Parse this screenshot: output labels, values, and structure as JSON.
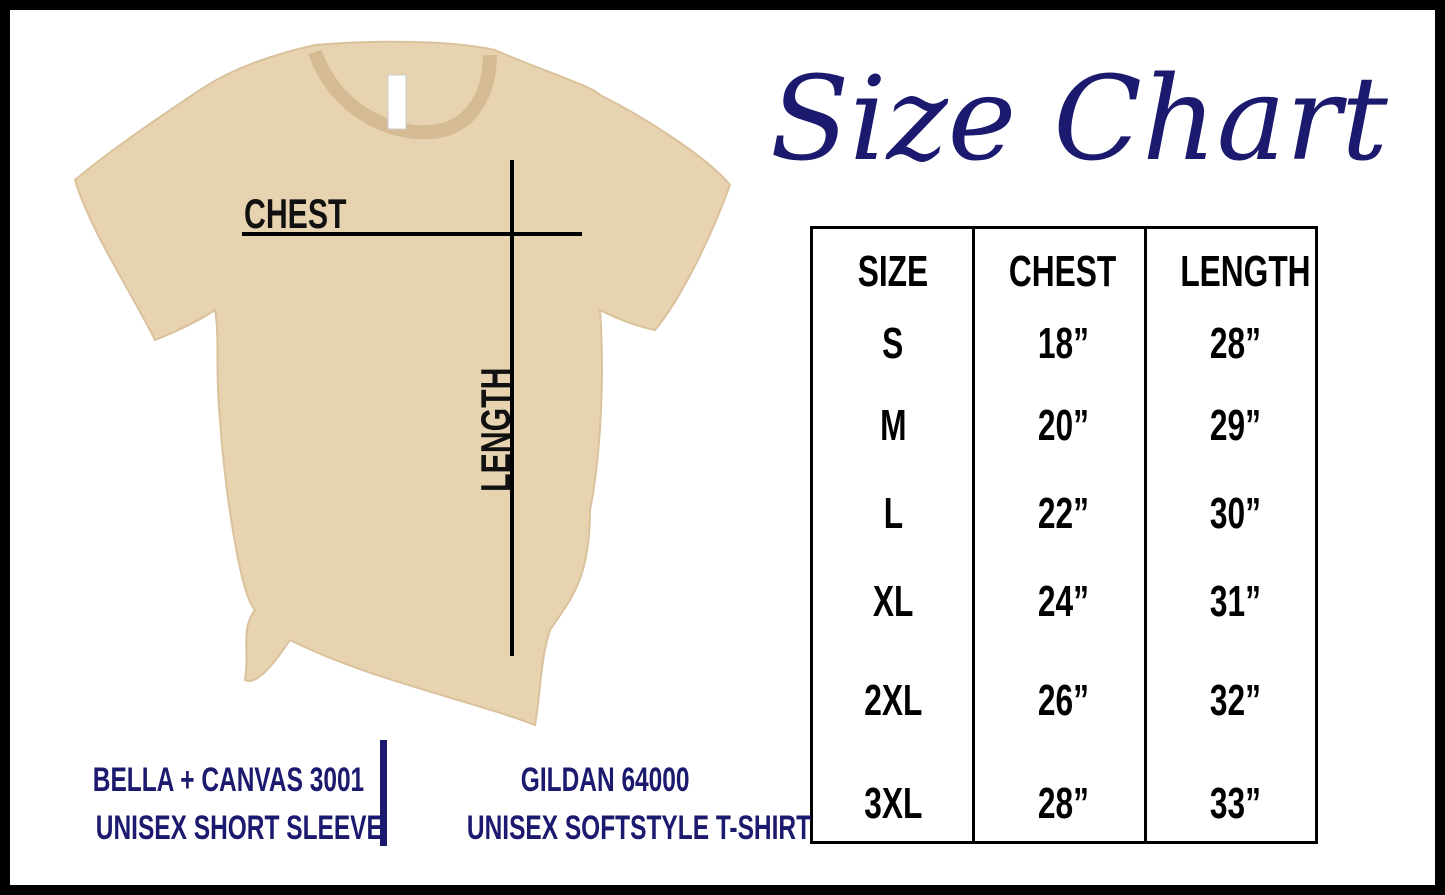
{
  "title": "Size Chart",
  "colors": {
    "accent": "#1c1a6e",
    "shirt": "#e8d3b0",
    "border": "#000000"
  },
  "shirt_labels": {
    "chest": "CHEST",
    "length": "LENGTH"
  },
  "table": {
    "headers": [
      "SIZE",
      "CHEST",
      "LENGTH"
    ],
    "rows": [
      [
        "S",
        "18”",
        "28”"
      ],
      [
        "M",
        "20”",
        "29”"
      ],
      [
        "L",
        "22”",
        "30”"
      ],
      [
        "XL",
        "24”",
        "31”"
      ],
      [
        "2XL",
        "26”",
        "32”"
      ],
      [
        "3XL",
        "28”",
        "33”"
      ]
    ]
  },
  "brands": [
    {
      "line1": "BELLA + CANVAS 3001",
      "line2": "UNISEX SHORT SLEEVE"
    },
    {
      "line1": "GILDAN 64000",
      "line2": "UNISEX SOFTSTYLE T-SHIRT"
    }
  ]
}
